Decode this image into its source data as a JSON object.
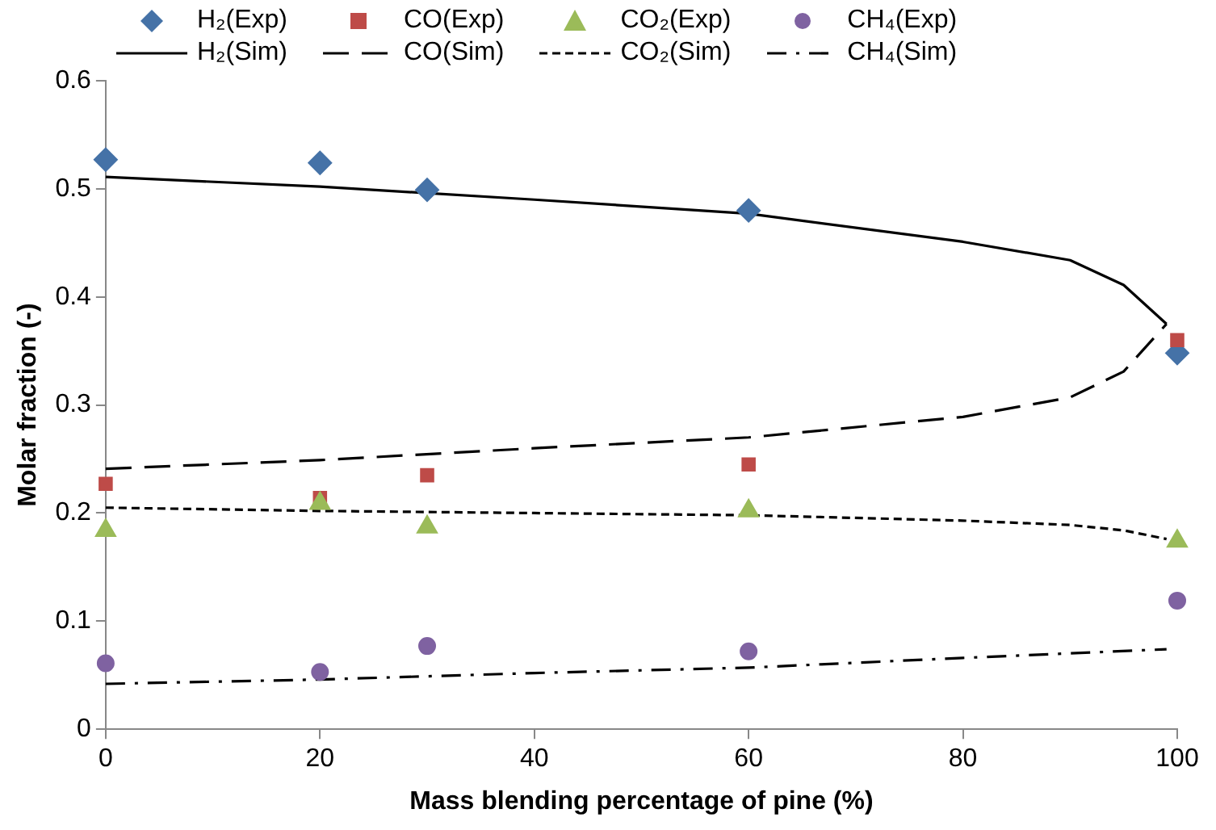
{
  "chart_data": {
    "type": "scatter",
    "xlabel": "Mass blending percentage of pine (%)",
    "ylabel": "Molar fraction (-)",
    "xlim": [
      0,
      100
    ],
    "xticks": [
      0,
      20,
      40,
      60,
      80,
      100
    ],
    "ylim": [
      0,
      0.6
    ],
    "yticks": [
      0,
      0.1,
      0.2,
      0.3,
      0.4,
      0.5,
      0.6
    ],
    "grid": false,
    "legend": "top",
    "series": [
      {
        "name": "H₂(Exp)",
        "marker": "diamond",
        "color": "#4572a7",
        "x": [
          0,
          20,
          30,
          60,
          100
        ],
        "values": [
          0.527,
          0.524,
          0.499,
          0.48,
          0.348
        ]
      },
      {
        "name": "CO(Exp)",
        "marker": "square",
        "color": "#be4b48",
        "x": [
          0,
          20,
          30,
          60,
          100
        ],
        "values": [
          0.227,
          0.214,
          0.235,
          0.245,
          0.36
        ]
      },
      {
        "name": "CO₂(Exp)",
        "marker": "triangle",
        "color": "#9bbb59",
        "x": [
          0,
          20,
          30,
          60,
          100
        ],
        "values": [
          0.184,
          0.209,
          0.187,
          0.202,
          0.174
        ]
      },
      {
        "name": "CH₄(Exp)",
        "marker": "circle",
        "color": "#7f62a1",
        "x": [
          0,
          20,
          30,
          60,
          100
        ],
        "values": [
          0.061,
          0.053,
          0.077,
          0.072,
          0.119
        ]
      },
      {
        "name": "H₂(Sim)",
        "type": "line",
        "marker": "none",
        "line_style": "solid",
        "color": "#000000",
        "x": [
          0,
          20,
          40,
          60,
          80,
          90,
          95,
          99
        ],
        "values": [
          0.511,
          0.502,
          0.49,
          0.477,
          0.451,
          0.434,
          0.411,
          0.375
        ]
      },
      {
        "name": "CO(Sim)",
        "type": "line",
        "marker": "none",
        "line_style": "dashed",
        "color": "#000000",
        "x": [
          0,
          20,
          40,
          60,
          80,
          90,
          95,
          99
        ],
        "values": [
          0.241,
          0.249,
          0.26,
          0.27,
          0.289,
          0.307,
          0.331,
          0.375
        ]
      },
      {
        "name": "CO₂(Sim)",
        "type": "line",
        "marker": "none",
        "line_style": "dotted",
        "color": "#000000",
        "x": [
          0,
          20,
          40,
          60,
          80,
          90,
          95,
          99
        ],
        "values": [
          0.205,
          0.202,
          0.2,
          0.198,
          0.193,
          0.189,
          0.184,
          0.176
        ]
      },
      {
        "name": "CH₄(Sim)",
        "type": "line",
        "marker": "none",
        "line_style": "dashdot",
        "color": "#000000",
        "x": [
          0,
          20,
          40,
          60,
          80,
          99
        ],
        "values": [
          0.042,
          0.046,
          0.052,
          0.057,
          0.066,
          0.074
        ]
      }
    ]
  }
}
